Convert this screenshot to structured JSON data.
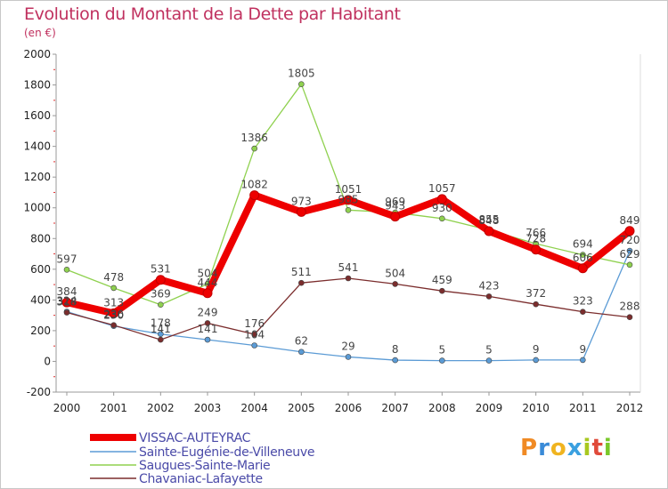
{
  "header": {
    "title": "Evolution du Montant de la Dette par Habitant",
    "unit": "(en €)"
  },
  "brand": {
    "letters": [
      "P",
      "r",
      "o",
      "x",
      "i",
      "t",
      "i"
    ],
    "colors": [
      "#f08a24",
      "#3a8bd8",
      "#f0b420",
      "#3aa0e0",
      "#a8c820",
      "#e04a3a",
      "#7ac82a"
    ]
  },
  "chart_data": {
    "type": "line",
    "title": "Evolution du Montant de la Dette par Habitant",
    "ylabel": "(en €)",
    "xlabel": "",
    "x": [
      2000,
      2001,
      2002,
      2003,
      2004,
      2005,
      2006,
      2007,
      2008,
      2009,
      2010,
      2011,
      2012
    ],
    "ylim": [
      -200,
      2000
    ],
    "yticks": [
      -200,
      0,
      200,
      400,
      600,
      800,
      1000,
      1200,
      1400,
      1600,
      1800,
      2000
    ],
    "grid": false,
    "legend_position": "bottom-left",
    "series": [
      {
        "name": "VISSAC-AUTEYRAC",
        "color": "#ee0000",
        "values": [
          384,
          313,
          531,
          444,
          1082,
          973,
          1051,
          943,
          1057,
          848,
          728,
          606,
          849
        ]
      },
      {
        "name": "Sainte-Eugénie-de-Villeneuve",
        "color": "#5b9bd5",
        "values": [
          324,
          230,
          178,
          141,
          104,
          62,
          29,
          8,
          5,
          5,
          9,
          9,
          720
        ]
      },
      {
        "name": "Saugues-Sainte-Marie",
        "color": "#8fd14f",
        "values": [
          597,
          478,
          369,
          504,
          1386,
          1805,
          985,
          969,
          930,
          855,
          766,
          694,
          629
        ]
      },
      {
        "name": "Chavaniac-Lafayette",
        "color": "#7b2d2d",
        "values": [
          318,
          236,
          141,
          249,
          176,
          511,
          541,
          504,
          459,
          423,
          372,
          323,
          288
        ]
      }
    ]
  }
}
